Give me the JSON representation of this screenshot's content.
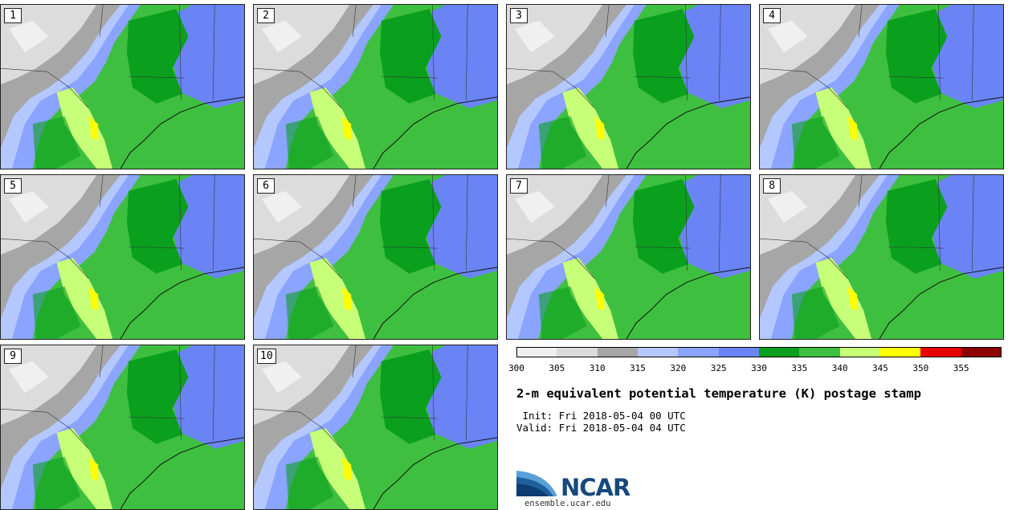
{
  "panels": [
    {
      "label": "1"
    },
    {
      "label": "2"
    },
    {
      "label": "3"
    },
    {
      "label": "4"
    },
    {
      "label": "5"
    },
    {
      "label": "6"
    },
    {
      "label": "7"
    },
    {
      "label": "8"
    },
    {
      "label": "9"
    },
    {
      "label": "10"
    }
  ],
  "colorbar": {
    "ticks": [
      "300",
      "305",
      "310",
      "315",
      "320",
      "325",
      "330",
      "335",
      "340",
      "345",
      "350",
      "355"
    ],
    "colors": [
      "#f0f0f0",
      "#dcdcdc",
      "#a6a6a6",
      "#b4c8ff",
      "#8aa4ff",
      "#6a84f5",
      "#0aa01e",
      "#3fbf3f",
      "#c8ff78",
      "#ffff00",
      "#e60000",
      "#8c0000"
    ]
  },
  "title": "2-m equivalent potential temperature (K) postage stamp",
  "init_text": " Init: Fri 2018-05-04 00 UTC",
  "valid_text": "Valid: Fri 2018-05-04 04 UTC",
  "logo": {
    "name": "NCAR",
    "url": "ensemble.ucar.edu"
  }
}
